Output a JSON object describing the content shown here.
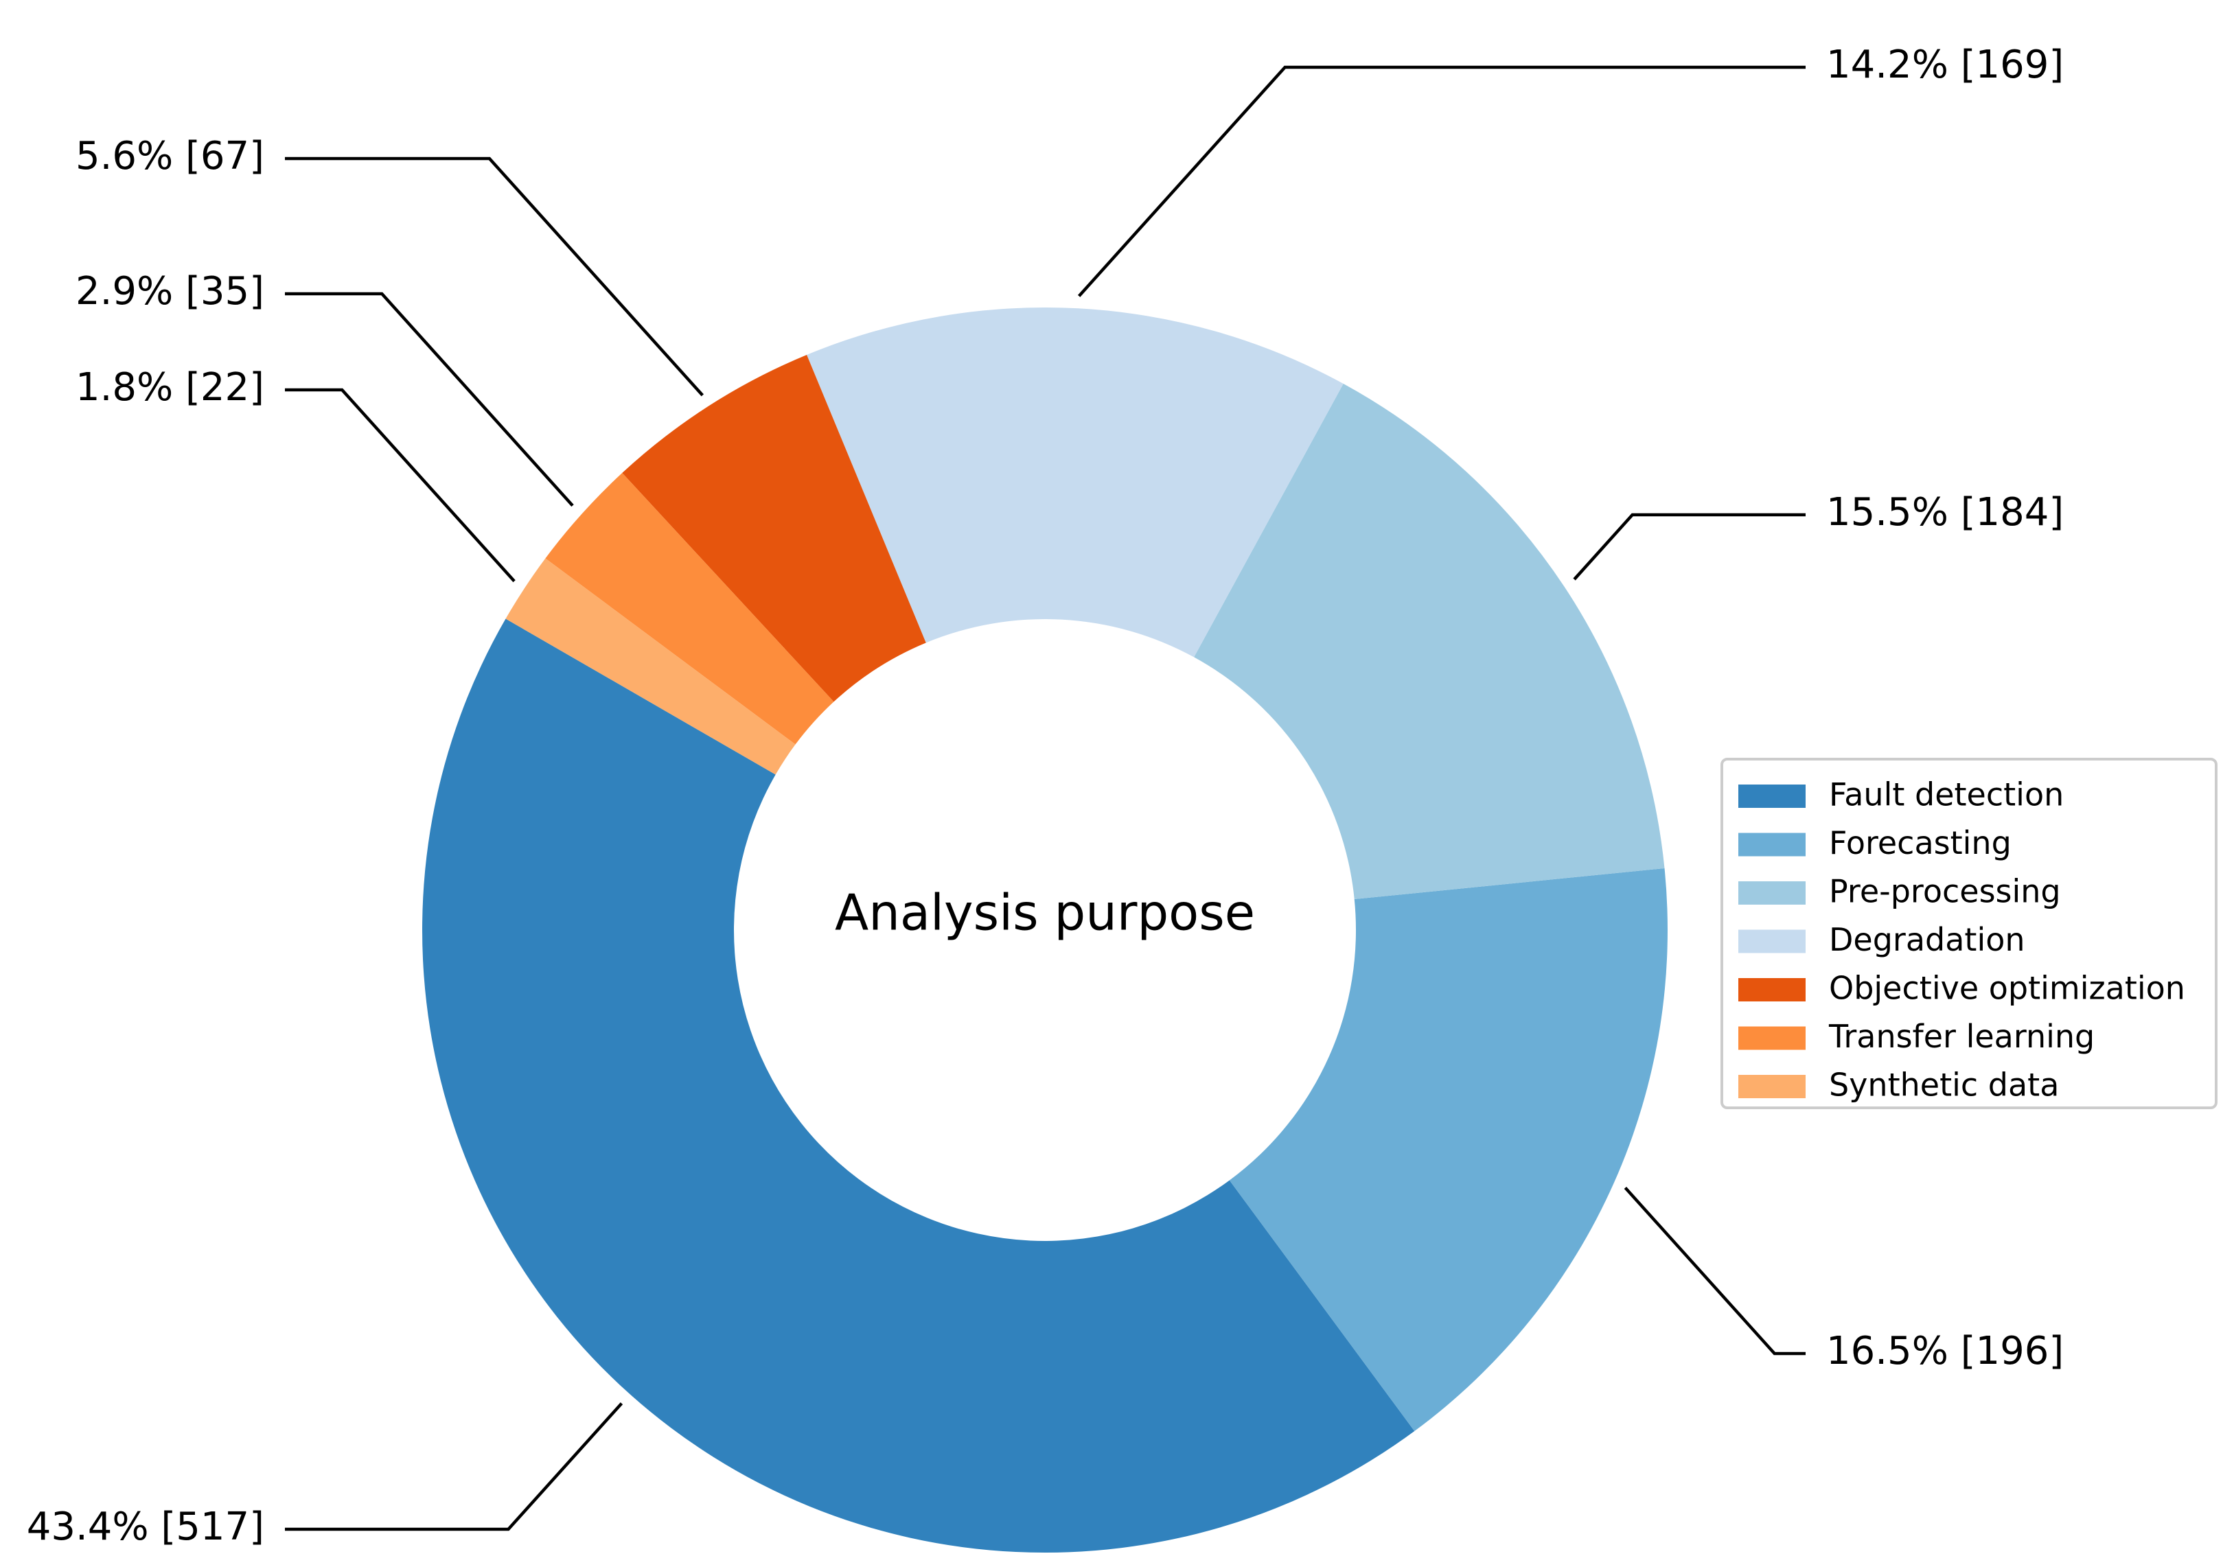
{
  "chart_data": {
    "type": "pie",
    "variant": "donut",
    "center_label": "Analysis purpose",
    "slices": [
      {
        "name": "Fault detection",
        "value": 517,
        "percent": 43.4,
        "label": "43.4% [517]",
        "color": "#3182bd"
      },
      {
        "name": "Forecasting",
        "value": 196,
        "percent": 16.5,
        "label": "16.5% [196]",
        "color": "#6baed6"
      },
      {
        "name": "Pre-processing",
        "value": 184,
        "percent": 15.5,
        "label": "15.5% [184]",
        "color": "#9ecae1"
      },
      {
        "name": "Degradation",
        "value": 169,
        "percent": 14.2,
        "label": "14.2% [169]",
        "color": "#c6dbef"
      },
      {
        "name": "Objective optimization",
        "value": 67,
        "percent": 5.6,
        "label": "5.6% [67]",
        "color": "#e6550d"
      },
      {
        "name": "Transfer learning",
        "value": 35,
        "percent": 2.9,
        "label": "2.9% [35]",
        "color": "#fd8d3c"
      },
      {
        "name": "Synthetic data",
        "value": 22,
        "percent": 1.8,
        "label": "1.8% [22]",
        "color": "#fdae6b"
      }
    ],
    "legend_position": "right"
  }
}
